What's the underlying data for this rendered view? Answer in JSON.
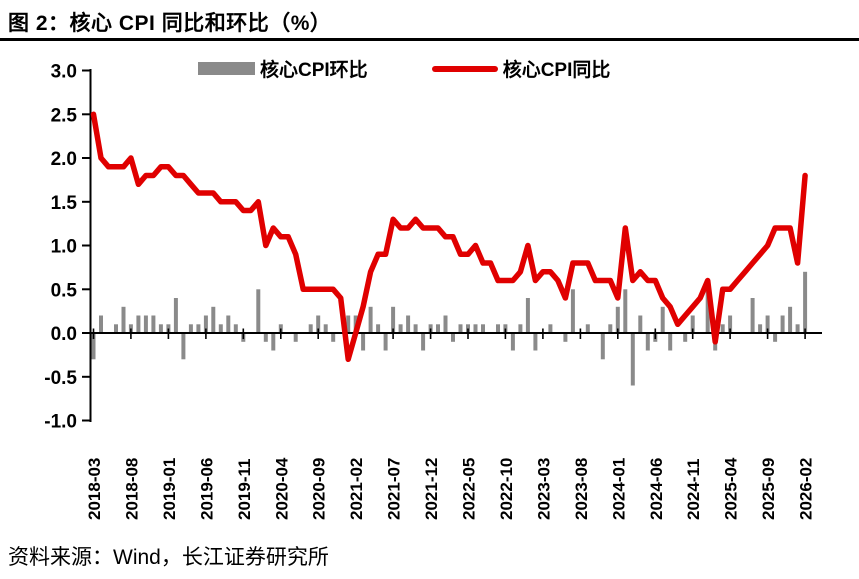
{
  "title": "图 2：核心 CPI 同比和环比（%）",
  "source_note": "资料来源：Wind，长江证券研究所",
  "colors": {
    "bar": "#8a8a8a",
    "line": "#e00000",
    "axis": "#000000",
    "background": "#ffffff"
  },
  "legend": [
    {
      "label": "核心CPI环比",
      "type": "bar",
      "color": "#8a8a8a"
    },
    {
      "label": "核心CPI同比",
      "type": "line",
      "color": "#e00000"
    }
  ],
  "chart_data": {
    "type": "bar+line",
    "title": "图 2：核心 CPI 同比和环比（%）",
    "xlabel": "",
    "ylabel": "",
    "ylim": [
      -1.0,
      3.0
    ],
    "yticks": [
      "3.0",
      "2.5",
      "2.0",
      "1.5",
      "1.0",
      "0.5",
      "0.0",
      "-0.5",
      "-1.0"
    ],
    "xtick_interval": 5,
    "grid": false,
    "legend_position": "top",
    "x": [
      "2018-03",
      "2018-04",
      "2018-05",
      "2018-06",
      "2018-07",
      "2018-08",
      "2018-09",
      "2018-10",
      "2018-11",
      "2018-12",
      "2019-01",
      "2019-02",
      "2019-03",
      "2019-04",
      "2019-05",
      "2019-06",
      "2019-07",
      "2019-08",
      "2019-09",
      "2019-10",
      "2019-11",
      "2019-12",
      "2020-01",
      "2020-02",
      "2020-03",
      "2020-04",
      "2020-05",
      "2020-06",
      "2020-07",
      "2020-08",
      "2020-09",
      "2020-10",
      "2020-11",
      "2020-12",
      "2021-01",
      "2021-02",
      "2021-03",
      "2021-04",
      "2021-05",
      "2021-06",
      "2021-07",
      "2021-08",
      "2021-09",
      "2021-10",
      "2021-11",
      "2021-12",
      "2022-01",
      "2022-02",
      "2022-03",
      "2022-04",
      "2022-05",
      "2022-06",
      "2022-07",
      "2022-08",
      "2022-09",
      "2022-10",
      "2022-11",
      "2022-12",
      "2023-01",
      "2023-02",
      "2023-03",
      "2023-04",
      "2023-05",
      "2023-06",
      "2023-07",
      "2023-08",
      "2023-09",
      "2023-10",
      "2023-11",
      "2023-12",
      "2024-01",
      "2024-02",
      "2024-03",
      "2024-04",
      "2024-05",
      "2024-06",
      "2024-07",
      "2024-08",
      "2024-09",
      "2024-10",
      "2024-11",
      "2024-12",
      "2025-01",
      "2025-02",
      "2025-03",
      "2025-04",
      "2025-05",
      "2025-06",
      "2025-07",
      "2025-08",
      "2025-09",
      "2025-10",
      "2025-11",
      "2025-12",
      "2026-01",
      "2026-02"
    ],
    "series": [
      {
        "name": "核心CPI环比",
        "type": "bar",
        "color": "#8a8a8a",
        "values": [
          -0.3,
          0.2,
          0.0,
          0.1,
          0.3,
          0.1,
          0.2,
          0.2,
          0.2,
          0.1,
          0.1,
          0.4,
          -0.3,
          0.1,
          0.1,
          0.2,
          0.3,
          0.1,
          0.2,
          0.1,
          -0.1,
          0.0,
          0.5,
          -0.1,
          -0.2,
          0.1,
          0.0,
          -0.1,
          0.0,
          0.1,
          0.2,
          0.1,
          -0.1,
          0.0,
          0.2,
          0.2,
          -0.2,
          0.3,
          0.1,
          -0.2,
          0.3,
          0.1,
          0.2,
          0.1,
          -0.2,
          0.1,
          0.1,
          0.2,
          -0.1,
          0.1,
          0.1,
          0.1,
          0.1,
          0.0,
          0.1,
          0.1,
          -0.2,
          0.1,
          0.4,
          -0.2,
          0.0,
          0.1,
          0.0,
          -0.1,
          0.5,
          0.0,
          0.1,
          0.0,
          -0.3,
          0.1,
          0.3,
          0.5,
          -0.6,
          0.2,
          -0.2,
          -0.1,
          0.3,
          -0.2,
          0.0,
          -0.1,
          0.2,
          0.0,
          0.5,
          -0.2,
          0.1,
          0.2,
          0.0,
          0.0,
          0.4,
          0.1,
          0.2,
          -0.1,
          0.2,
          0.3,
          0.1,
          0.7
        ]
      },
      {
        "name": "核心CPI同比",
        "type": "line",
        "color": "#e00000",
        "values": [
          2.5,
          2.0,
          1.9,
          1.9,
          1.9,
          2.0,
          1.7,
          1.8,
          1.8,
          1.9,
          1.9,
          1.8,
          1.8,
          1.7,
          1.6,
          1.6,
          1.6,
          1.5,
          1.5,
          1.5,
          1.4,
          1.4,
          1.5,
          1.0,
          1.2,
          1.1,
          1.1,
          0.9,
          0.5,
          0.5,
          0.5,
          0.5,
          0.5,
          0.4,
          -0.3,
          0.0,
          0.3,
          0.7,
          0.9,
          0.9,
          1.3,
          1.2,
          1.2,
          1.3,
          1.2,
          1.2,
          1.2,
          1.1,
          1.1,
          0.9,
          0.9,
          1.0,
          0.8,
          0.8,
          0.6,
          0.6,
          0.6,
          0.7,
          1.0,
          0.6,
          0.7,
          0.7,
          0.6,
          0.4,
          0.8,
          0.8,
          0.8,
          0.6,
          0.6,
          0.6,
          0.4,
          1.2,
          0.6,
          0.7,
          0.6,
          0.6,
          0.4,
          0.3,
          0.1,
          0.2,
          0.3,
          0.4,
          0.6,
          -0.1,
          0.5,
          0.5,
          0.6,
          0.7,
          0.8,
          0.9,
          1.0,
          1.2,
          1.2,
          1.2,
          0.8,
          1.8
        ]
      }
    ]
  }
}
